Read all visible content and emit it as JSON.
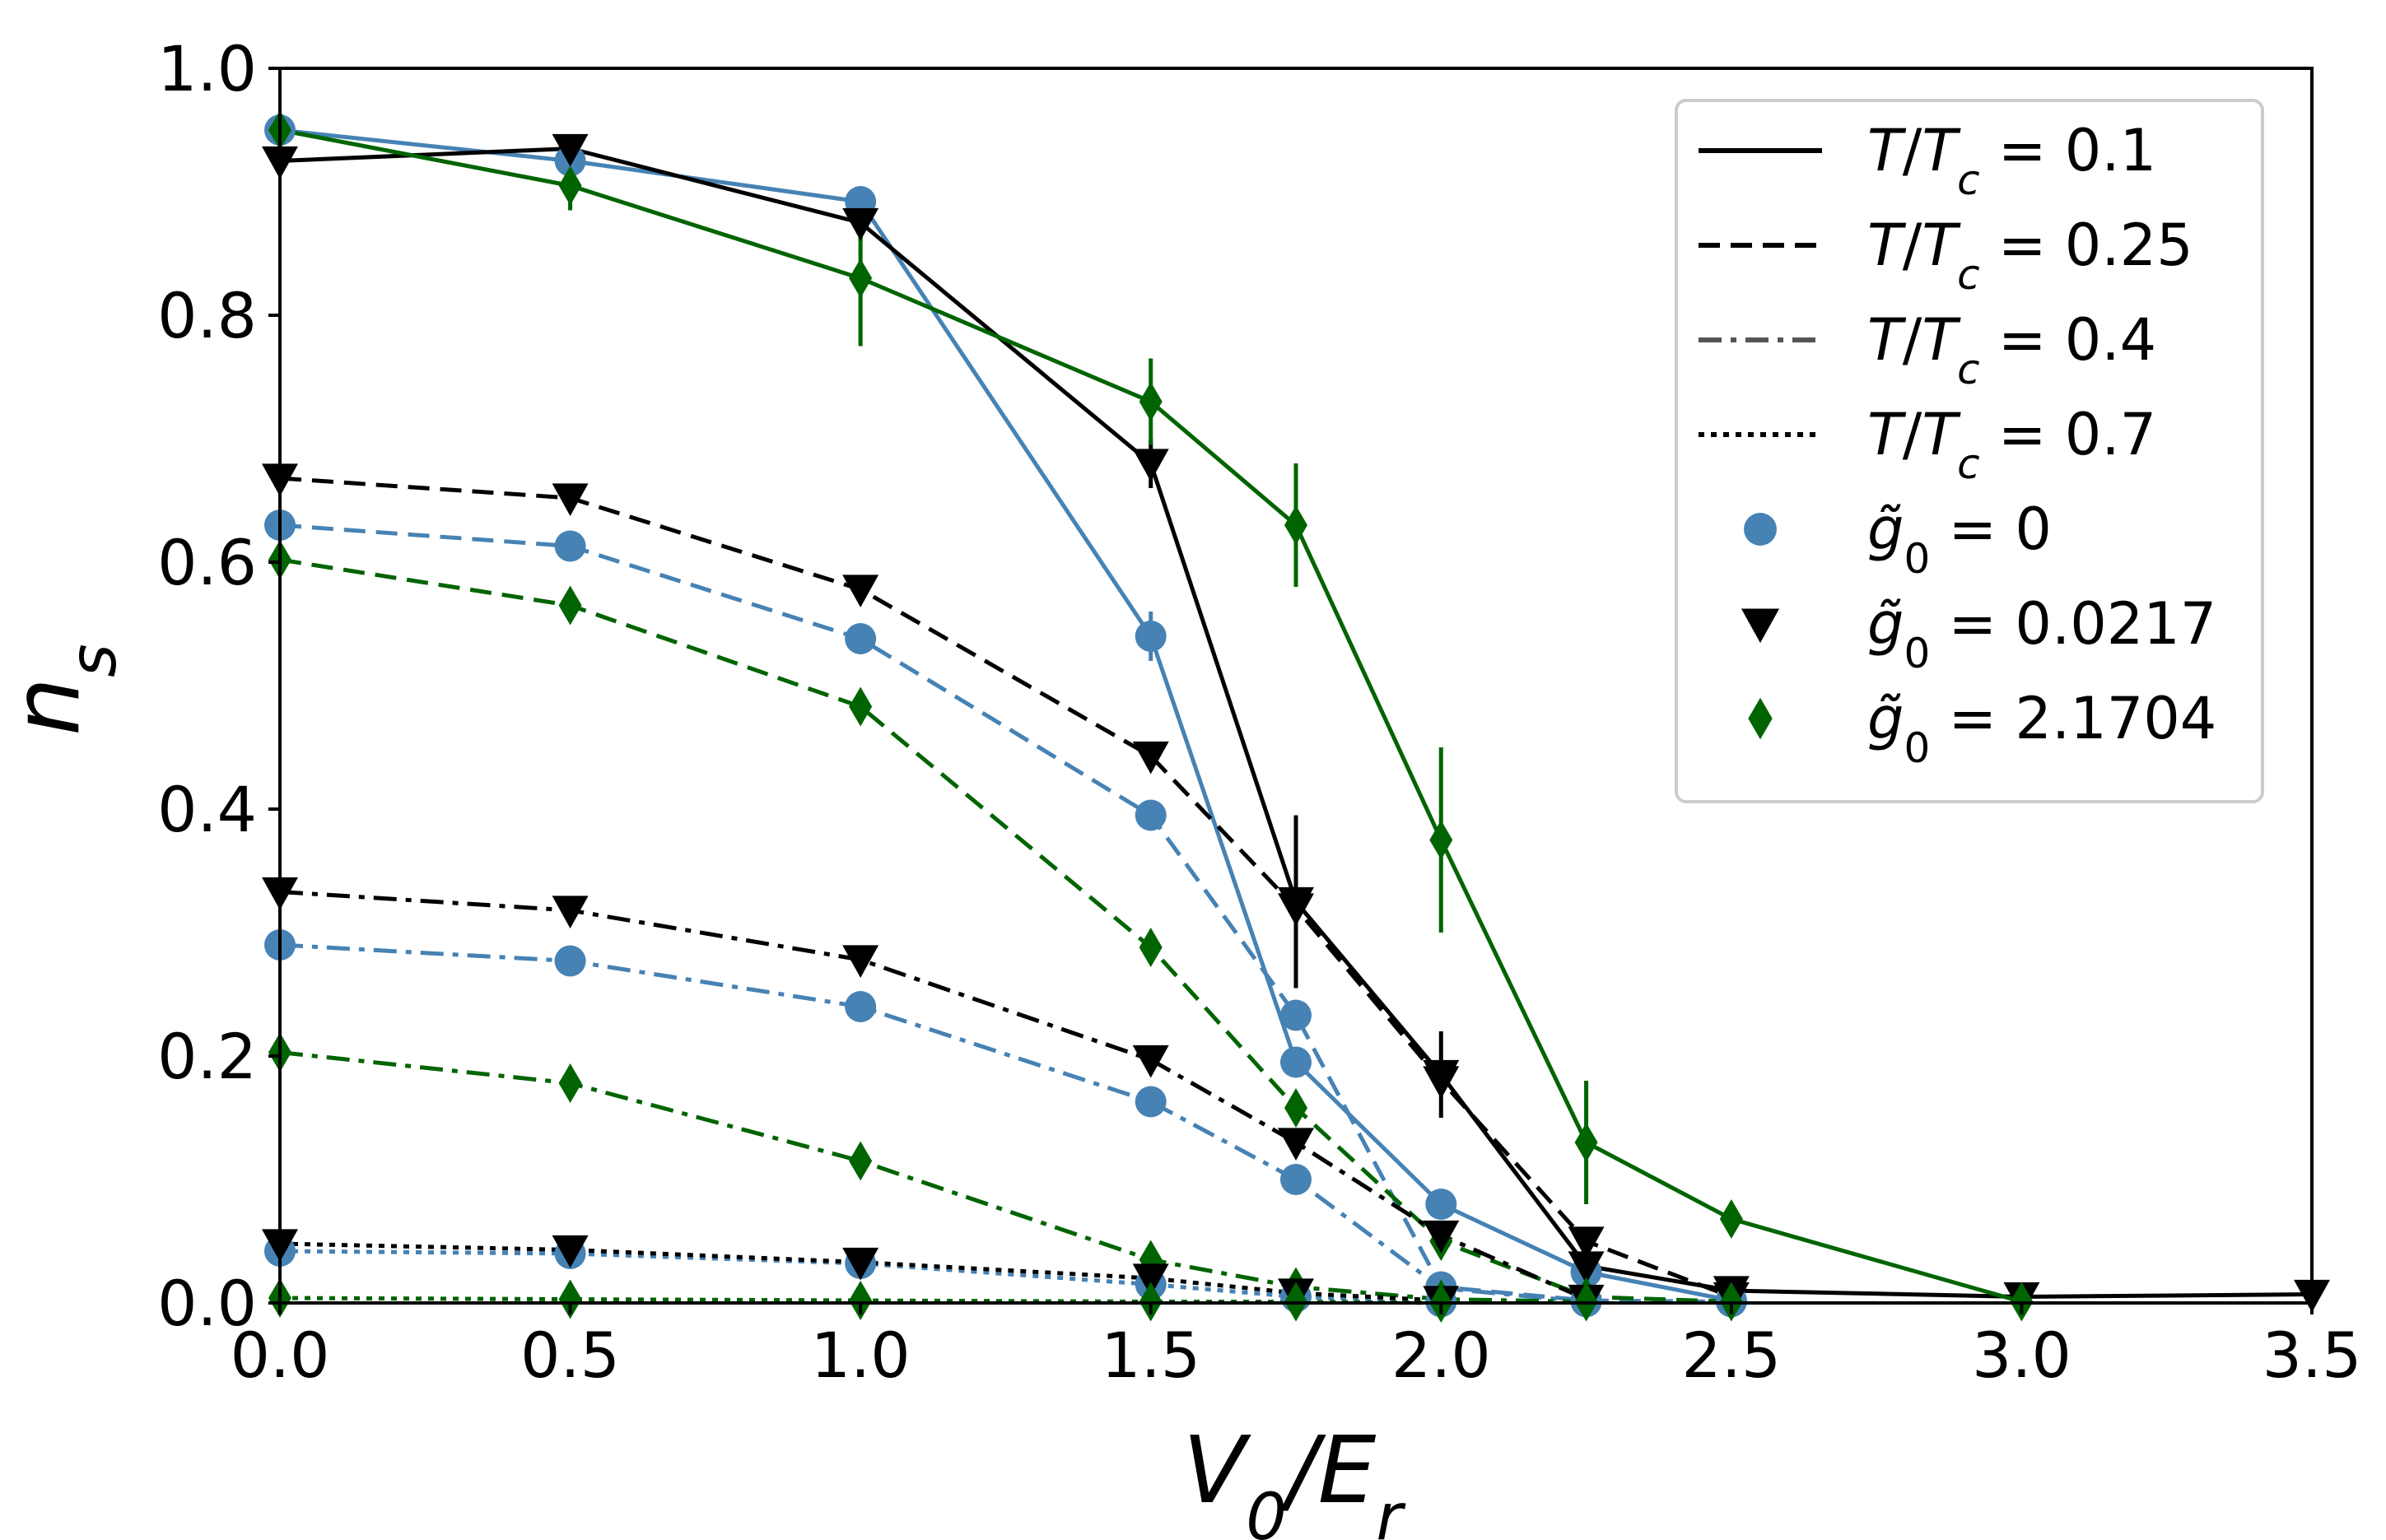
{
  "chart_data": {
    "type": "line",
    "xlabel": "V₀/Eᵣ",
    "ylabel": "nₛ",
    "xlim": [
      0.0,
      3.5
    ],
    "ylim": [
      0.0,
      1.0
    ],
    "xticks": [
      0.0,
      0.5,
      1.0,
      1.5,
      2.0,
      2.5,
      3.0,
      3.5
    ],
    "yticks": [
      0.0,
      0.2,
      0.4,
      0.6,
      0.8,
      1.0
    ],
    "xtick_labels": [
      "0.0",
      "0.5",
      "1.0",
      "1.5",
      "2.0",
      "2.5",
      "3.0",
      "3.5"
    ],
    "ytick_labels": [
      "0.0",
      "0.2",
      "0.4",
      "0.6",
      "0.8",
      "1.0"
    ],
    "legend_position": "top-right",
    "line_styles": [
      {
        "style": "solid",
        "temperature": "0.1",
        "label": "T/T_c = 0.1"
      },
      {
        "style": "dashed",
        "temperature": "0.25",
        "label": "T/T_c = 0.25"
      },
      {
        "style": "dashdot",
        "temperature": "0.4",
        "label": "T/T_c = 0.4"
      },
      {
        "style": "dotted",
        "temperature": "0.7",
        "label": "T/T_c = 0.7"
      }
    ],
    "marker_groups": [
      {
        "marker": "circle",
        "color": "#4682b4",
        "coupling": "0",
        "label": "g̃₀ = 0"
      },
      {
        "marker": "triangle-down",
        "color": "#000000",
        "coupling": "0.0217",
        "label": "g̃₀ = 0.0217"
      },
      {
        "marker": "diamond",
        "color": "#006400",
        "coupling": "2.1704",
        "label": "g̃₀ = 2.1704"
      }
    ],
    "series": [
      {
        "name": "g0=0, T/Tc=0.1",
        "group": 0,
        "style": "solid",
        "x": [
          0.0,
          0.5,
          1.0,
          1.5,
          1.75,
          2.0,
          2.25,
          2.5
        ],
        "y": [
          0.95,
          0.925,
          0.892,
          0.54,
          0.195,
          0.08,
          0.025,
          0.002
        ],
        "err": [
          0,
          0,
          0,
          0.02,
          0,
          0,
          0,
          0
        ]
      },
      {
        "name": "g0=0.0217, T/Tc=0.1",
        "group": 1,
        "style": "solid",
        "x": [
          0.0,
          0.5,
          1.0,
          1.5,
          1.75,
          2.0,
          2.25,
          2.5,
          3.0,
          3.5
        ],
        "y": [
          0.925,
          0.935,
          0.875,
          0.68,
          0.325,
          0.185,
          0.03,
          0.01,
          0.005,
          0.007
        ],
        "err": [
          0,
          0.01,
          0.015,
          0.02,
          0.07,
          0.035,
          0,
          0.01,
          0,
          0
        ]
      },
      {
        "name": "g0=2.1704, T/Tc=0.1",
        "group": 2,
        "style": "solid",
        "x": [
          0.0,
          0.5,
          1.0,
          1.5,
          1.75,
          2.0,
          2.25,
          2.5,
          3.0
        ],
        "y": [
          0.95,
          0.905,
          0.83,
          0.73,
          0.63,
          0.375,
          0.13,
          0.068,
          0.001
        ],
        "err": [
          0.01,
          0.02,
          0.055,
          0.035,
          0.05,
          0.075,
          0.05,
          0,
          0
        ]
      },
      {
        "name": "g0=0, T/Tc=0.25",
        "group": 0,
        "style": "dashed",
        "x": [
          0.0,
          0.5,
          1.0,
          1.5,
          1.75,
          2.0,
          2.25,
          2.5
        ],
        "y": [
          0.63,
          0.613,
          0.538,
          0.395,
          0.233,
          0.013,
          0.002,
          0.001
        ],
        "err": [
          0,
          0,
          0,
          0,
          0,
          0,
          0,
          0
        ]
      },
      {
        "name": "g0=0.0217, T/Tc=0.25",
        "group": 1,
        "style": "dashed",
        "x": [
          0.0,
          0.5,
          1.0,
          1.5,
          1.75,
          2.0,
          2.25,
          2.5
        ],
        "y": [
          0.668,
          0.652,
          0.578,
          0.443,
          0.32,
          0.18,
          0.05,
          0.005
        ],
        "err": [
          0,
          0,
          0,
          0,
          0,
          0,
          0,
          0
        ]
      },
      {
        "name": "g0=2.1704, T/Tc=0.25",
        "group": 2,
        "style": "dashed",
        "x": [
          0.0,
          0.5,
          1.0,
          1.5,
          1.75,
          2.0,
          2.25,
          2.5
        ],
        "y": [
          0.602,
          0.565,
          0.483,
          0.288,
          0.158,
          0.05,
          0.005,
          0.001
        ],
        "err": [
          0,
          0,
          0,
          0,
          0,
          0,
          0,
          0
        ]
      },
      {
        "name": "g0=0, T/Tc=0.4",
        "group": 0,
        "style": "dashdot",
        "x": [
          0.0,
          0.5,
          1.0,
          1.5,
          1.75,
          2.0,
          2.25
        ],
        "y": [
          0.29,
          0.277,
          0.24,
          0.163,
          0.1,
          0.012,
          0.001
        ],
        "err": [
          0,
          0,
          0,
          0,
          0,
          0,
          0
        ]
      },
      {
        "name": "g0=0.0217, T/Tc=0.4",
        "group": 1,
        "style": "dashdot",
        "x": [
          0.0,
          0.5,
          1.0,
          1.5,
          1.75,
          2.0,
          2.25
        ],
        "y": [
          0.333,
          0.318,
          0.278,
          0.197,
          0.13,
          0.055,
          0.003
        ],
        "err": [
          0,
          0,
          0,
          0,
          0,
          0,
          0
        ]
      },
      {
        "name": "g0=2.1704, T/Tc=0.4",
        "group": 2,
        "style": "dashdot",
        "x": [
          0.0,
          0.5,
          1.0,
          1.5,
          1.75,
          2.0,
          2.25
        ],
        "y": [
          0.203,
          0.178,
          0.115,
          0.035,
          0.013,
          0.003,
          0.001
        ],
        "err": [
          0,
          0,
          0,
          0,
          0,
          0,
          0
        ]
      },
      {
        "name": "g0=0, T/Tc=0.7",
        "group": 0,
        "style": "dotted",
        "x": [
          0.0,
          0.5,
          1.0,
          1.5,
          1.75,
          2.0
        ],
        "y": [
          0.042,
          0.04,
          0.032,
          0.015,
          0.005,
          0.001
        ],
        "err": [
          0,
          0,
          0,
          0,
          0,
          0
        ]
      },
      {
        "name": "g0=0.0217, T/Tc=0.7",
        "group": 1,
        "style": "dotted",
        "x": [
          0.0,
          0.5,
          1.0,
          1.5,
          1.75,
          2.0
        ],
        "y": [
          0.048,
          0.043,
          0.033,
          0.02,
          0.008,
          0.002
        ],
        "err": [
          0,
          0,
          0,
          0,
          0,
          0
        ]
      },
      {
        "name": "g0=2.1704, T/Tc=0.7",
        "group": 2,
        "style": "dotted",
        "x": [
          0.0,
          0.5,
          1.0,
          1.5,
          1.75,
          2.0
        ],
        "y": [
          0.004,
          0.003,
          0.002,
          0.001,
          0.001,
          0.0
        ],
        "err": [
          0,
          0,
          0,
          0,
          0,
          0
        ]
      }
    ]
  }
}
